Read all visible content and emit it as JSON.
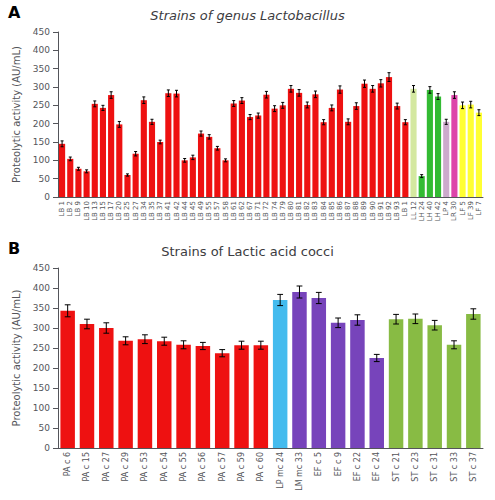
{
  "chart_data": [
    {
      "type": "bar",
      "title": "Strains of genus Lactobacillus",
      "y_label": "Proteolytic activity (AU/mL)",
      "annotations": [
        "A"
      ],
      "categories": [
        "LB 1",
        "LB 2",
        "LB 9",
        "LB 10",
        "LB 13",
        "LB 15",
        "LB 17",
        "LB 20",
        "LB 25",
        "LB 27",
        "LB 34",
        "LB 35",
        "LB 37",
        "LB 41",
        "LB 42",
        "LB 44",
        "LB 45",
        "LB 49",
        "LB 55",
        "LB 57",
        "LB 58",
        "LB 61",
        "LB 62",
        "LB 67",
        "LB 71",
        "LB 72",
        "LB 74",
        "LB 79",
        "LB 80",
        "LB 81",
        "LB 82",
        "LB 83",
        "LB 84",
        "LB 85",
        "LB 86",
        "LB 87",
        "LB 88",
        "LB 89",
        "LB 90",
        "LB 91",
        "LB 92",
        "LB 93",
        "LB 1",
        "LL 12",
        "LH 24",
        "LH 40",
        "LH 42",
        "LP 4",
        "LR 30",
        "LF 5",
        "LF 39",
        "LF 7"
      ],
      "values": [
        145,
        104,
        77,
        70,
        254,
        243,
        278,
        198,
        60,
        118,
        264,
        205,
        150,
        283,
        282,
        100,
        108,
        173,
        164,
        133,
        100,
        255,
        263,
        218,
        222,
        279,
        241,
        250,
        295,
        284,
        251,
        280,
        204,
        243,
        293,
        205,
        248,
        309,
        295,
        310,
        327,
        248,
        204,
        295,
        57,
        292,
        274,
        205,
        278,
        250,
        252,
        230
      ],
      "errors": [
        8,
        5,
        4,
        4,
        8,
        7,
        9,
        8,
        3,
        6,
        9,
        7,
        5,
        9,
        9,
        5,
        6,
        7,
        6,
        5,
        4,
        8,
        8,
        7,
        7,
        9,
        8,
        8,
        9,
        9,
        8,
        9,
        7,
        8,
        10,
        8,
        9,
        10,
        9,
        10,
        12,
        8,
        7,
        9,
        4,
        9,
        8,
        7,
        9,
        9,
        9,
        8
      ],
      "colors": [
        "#EE1111",
        "#EE1111",
        "#EE1111",
        "#EE1111",
        "#EE1111",
        "#EE1111",
        "#EE1111",
        "#EE1111",
        "#EE1111",
        "#EE1111",
        "#EE1111",
        "#EE1111",
        "#EE1111",
        "#EE1111",
        "#EE1111",
        "#EE1111",
        "#EE1111",
        "#EE1111",
        "#EE1111",
        "#EE1111",
        "#EE1111",
        "#EE1111",
        "#EE1111",
        "#EE1111",
        "#EE1111",
        "#EE1111",
        "#EE1111",
        "#EE1111",
        "#EE1111",
        "#EE1111",
        "#EE1111",
        "#EE1111",
        "#EE1111",
        "#EE1111",
        "#EE1111",
        "#EE1111",
        "#EE1111",
        "#EE1111",
        "#EE1111",
        "#EE1111",
        "#EE1111",
        "#EE1111",
        "#EE1111",
        "#D4E8A0",
        "#33BB33",
        "#33BB33",
        "#33BB33",
        "#CCAACC",
        "#DD44AA",
        "#FFFF33",
        "#FFFF33",
        "#FFFF33"
      ],
      "ylim": [
        0,
        450
      ],
      "yticks": [
        0,
        50,
        100,
        150,
        200,
        250,
        300,
        350,
        400,
        450
      ],
      "grid": false
    },
    {
      "type": "bar",
      "title": "Strains of Lactic acid cocci",
      "y_label": "Proteolytic activity (AU/mL)",
      "annotations": [
        "B"
      ],
      "categories": [
        "PA c 6",
        "PA c 15",
        "PA c 27",
        "PA c 29",
        "PA c 53",
        "PA c 54",
        "PA c 55",
        "PA c 56",
        "PA c 57",
        "PA c 59",
        "PA c 60",
        "LP mc 24",
        "LM mc 33",
        "EF c 5",
        "EF c 9",
        "EF c 22",
        "EF c 24",
        "ST c 21",
        "ST c 23",
        "ST c 31",
        "ST c 33",
        "ST c 37"
      ],
      "values": [
        343,
        310,
        300,
        268,
        272,
        267,
        258,
        255,
        237,
        257,
        257,
        370,
        390,
        375,
        313,
        320,
        225,
        322,
        323,
        307,
        258,
        335
      ],
      "errors": [
        15,
        12,
        13,
        10,
        11,
        10,
        10,
        9,
        9,
        10,
        10,
        14,
        15,
        14,
        12,
        13,
        9,
        12,
        12,
        12,
        10,
        13
      ],
      "colors": [
        "#EE1111",
        "#EE1111",
        "#EE1111",
        "#EE1111",
        "#EE1111",
        "#EE1111",
        "#EE1111",
        "#EE1111",
        "#EE1111",
        "#EE1111",
        "#EE1111",
        "#44BBEE",
        "#7744BB",
        "#7744BB",
        "#7744BB",
        "#7744BB",
        "#7744BB",
        "#88BB44",
        "#88BB44",
        "#88BB44",
        "#88BB44",
        "#88BB44"
      ],
      "ylim": [
        0,
        450
      ],
      "yticks": [
        0,
        50,
        100,
        150,
        200,
        250,
        300,
        350,
        400,
        450
      ],
      "grid": false
    }
  ]
}
